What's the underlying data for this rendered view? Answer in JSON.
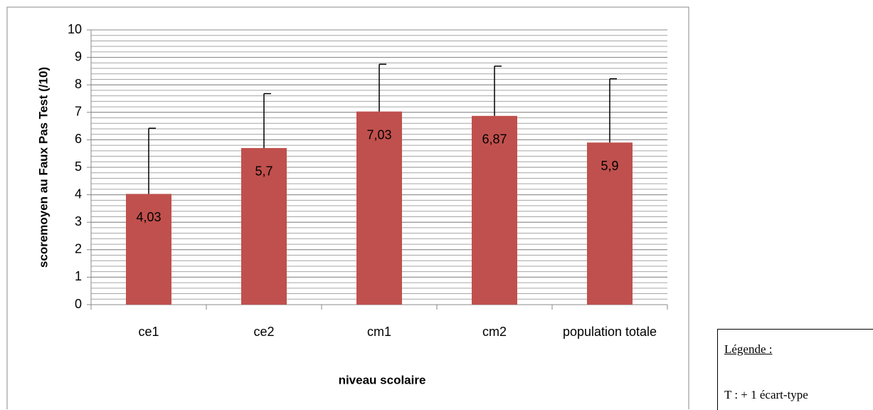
{
  "chart_data": {
    "type": "bar",
    "y_label": "scoremoyen au Faux Pas Test (/10)",
    "x_label": "niveau scolaire",
    "categories": [
      "ce1",
      "ce2",
      "cm1",
      "cm2",
      "population totale"
    ],
    "values": [
      4.03,
      5.7,
      7.03,
      6.87,
      5.9
    ],
    "value_labels": [
      "4,03",
      "5,7",
      "7,03",
      "6,87",
      "5,9"
    ],
    "errors": [
      2.39,
      1.98,
      1.72,
      1.81,
      2.32
    ],
    "color": "#c0504d",
    "ylim": [
      0,
      10
    ],
    "yticks": [
      0,
      1,
      2,
      3,
      4,
      5,
      6,
      7,
      8,
      9,
      10
    ],
    "grid": true,
    "minor_grid_step": 0.2,
    "legend_note": {
      "title": "Légende :",
      "text": "T : + 1 écart-type"
    }
  }
}
